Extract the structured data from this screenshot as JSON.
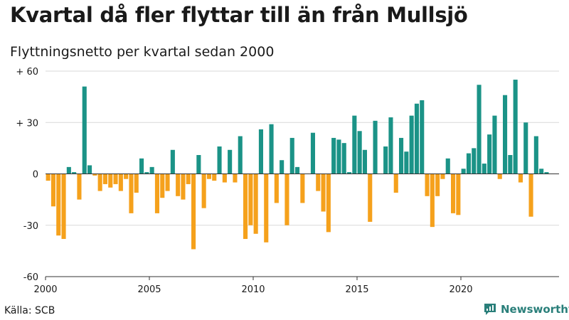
{
  "title": "Kvartal då fler flyttar till än från Mullsjö",
  "subtitle": "Flyttningsnetto per kvartal sedan 2000",
  "source": "Källa: SCB",
  "brand": "Newsworthy",
  "colors": {
    "positive": "#1b9387",
    "negative": "#f5a11c",
    "brand": "#2a7f7a"
  },
  "chart_data": {
    "type": "bar",
    "title": "Kvartal då fler flyttar till än från Mullsjö",
    "subtitle": "Flyttningsnetto per kvartal sedan 2000",
    "ylim": [
      -60,
      60
    ],
    "yticks": [
      {
        "value": 60,
        "label": "+ 60"
      },
      {
        "value": 30,
        "label": "+ 30"
      },
      {
        "value": 0,
        "label": "0"
      },
      {
        "value": -30,
        "label": "-30"
      },
      {
        "value": -60,
        "label": "-60"
      }
    ],
    "xticks": [
      {
        "year": 2000,
        "label": "2000"
      },
      {
        "year": 2005,
        "label": "2005"
      },
      {
        "year": 2010,
        "label": "2010"
      },
      {
        "year": 2015,
        "label": "2015"
      },
      {
        "year": 2020,
        "label": "2020"
      }
    ],
    "start_year": 2000,
    "grid": true,
    "values": [
      -4,
      -19,
      -36,
      -38,
      4,
      1,
      -15,
      51,
      5,
      -1,
      -10,
      -6,
      -8,
      -6,
      -10,
      -3,
      -23,
      -11,
      9,
      1,
      4,
      -23,
      -14,
      -10,
      14,
      -13,
      -15,
      -6,
      -44,
      11,
      -20,
      -3,
      -4,
      16,
      -5,
      14,
      -5,
      22,
      -38,
      -30,
      -35,
      26,
      -40,
      29,
      -17,
      8,
      -30,
      21,
      4,
      -17,
      0,
      24,
      -10,
      -22,
      -34,
      21,
      20,
      18,
      1,
      34,
      25,
      14,
      -28,
      31,
      0,
      16,
      33,
      -11,
      21,
      13,
      34,
      41,
      43,
      -13,
      -31,
      -13,
      -3,
      9,
      -23,
      -24,
      3,
      12,
      15,
      52,
      6,
      23,
      34,
      -3,
      46,
      11,
      55,
      -5,
      30,
      -25,
      22,
      3,
      1
    ]
  }
}
